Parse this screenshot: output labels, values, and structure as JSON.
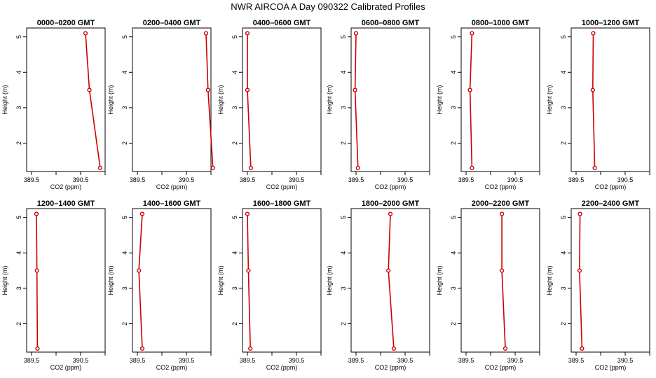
{
  "chart_data": {
    "type": "line",
    "title": "NWR AIRCOA A  Day 090322  Calibrated Profiles",
    "xlabel": "CO2 (ppm)",
    "ylabel": "Height (m)",
    "xlim": [
      389.4,
      391.0
    ],
    "ylim": [
      1.2,
      5.25
    ],
    "xticks": [
      389.5,
      390.0,
      390.5,
      391.0
    ],
    "xtick_labels": [
      "389.5",
      "",
      "390.5",
      ""
    ],
    "yticks": [
      2,
      3,
      4,
      5
    ],
    "ytick_labels": [
      "2",
      "3",
      "4",
      "5"
    ],
    "heights": [
      5.1,
      3.5,
      1.3
    ],
    "line_color": "#cc0000",
    "marker_color": "#cc0000",
    "panels": [
      {
        "label": "0000–0200 GMT",
        "co2": [
          390.6,
          390.68,
          390.9
        ]
      },
      {
        "label": "0200–0400 GMT",
        "co2": [
          390.9,
          390.94,
          391.04
        ]
      },
      {
        "label": "0400–0600 GMT",
        "co2": [
          389.5,
          389.5,
          389.57
        ]
      },
      {
        "label": "0600–0800 GMT",
        "co2": [
          389.5,
          389.48,
          389.54
        ]
      },
      {
        "label": "0800–1000 GMT",
        "co2": [
          389.62,
          389.58,
          389.62
        ]
      },
      {
        "label": "1000–1200 GMT",
        "co2": [
          389.85,
          389.84,
          389.88
        ]
      },
      {
        "label": "1200–1400 GMT",
        "co2": [
          389.6,
          389.61,
          389.62
        ]
      },
      {
        "label": "1400–1600 GMT",
        "co2": [
          389.6,
          389.53,
          389.6
        ]
      },
      {
        "label": "1600–1800 GMT",
        "co2": [
          389.5,
          389.52,
          389.56
        ]
      },
      {
        "label": "1800–2000 GMT",
        "co2": [
          390.2,
          390.16,
          390.27
        ]
      },
      {
        "label": "2000–2200 GMT",
        "co2": [
          390.23,
          390.23,
          390.3
        ]
      },
      {
        "label": "2200–2400 GMT",
        "co2": [
          389.58,
          389.57,
          389.62
        ]
      }
    ]
  }
}
